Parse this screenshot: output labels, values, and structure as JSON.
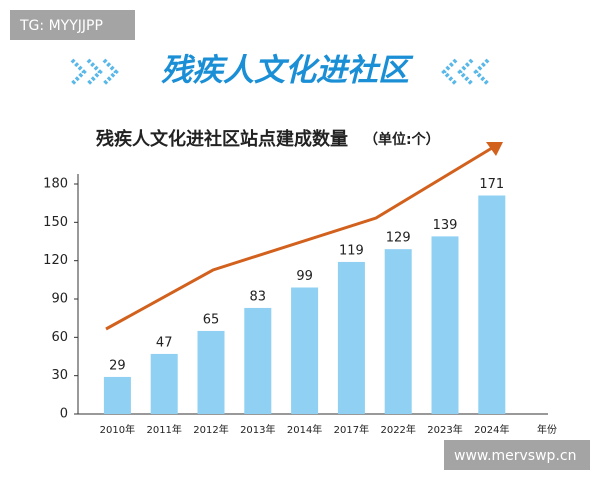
{
  "watermark_top": "TG: MYYJJPP",
  "watermark_bottom": "www.mervswp.cn",
  "chart_data": {
    "type": "bar",
    "banner": "残疾人文化进社区",
    "title": "残疾人文化进社区站点建成数量",
    "unit": "（单位:个）",
    "x_label": "年份",
    "categories": [
      "2010年",
      "2011年",
      "2012年",
      "2013年",
      "2014年",
      "2017年",
      "2022年",
      "2023年",
      "2024年"
    ],
    "values": [
      29,
      47,
      65,
      83,
      99,
      119,
      129,
      139,
      171
    ],
    "color": "#8fd0f3",
    "ylim": [
      0,
      180
    ],
    "yticks": [
      0,
      30,
      60,
      90,
      120,
      150,
      180
    ]
  }
}
